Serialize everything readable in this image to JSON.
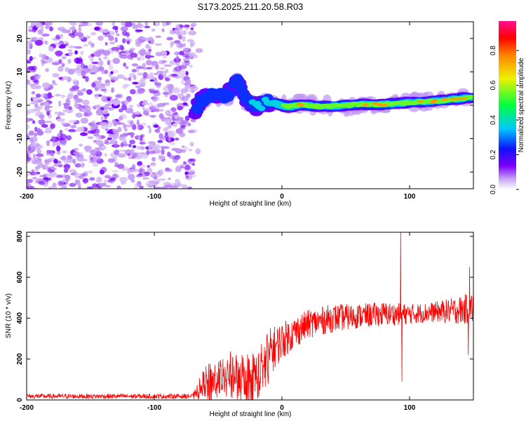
{
  "chart_data": [
    {
      "type": "heatmap",
      "title": "S173.2025.211.20.58.R03",
      "xlabel": "Height of straight line (km)",
      "ylabel": "Frequency (Hz)",
      "xlim": [
        -200,
        150
      ],
      "ylim": [
        -25,
        25
      ],
      "x_ticks": [
        -200,
        -100,
        0,
        100
      ],
      "y_ticks": [
        -20,
        -10,
        0,
        10,
        20
      ],
      "colorbar": {
        "label": "Normalized spectral amplitude",
        "range": [
          0,
          0.97
        ],
        "ticks": [
          0.0,
          0.2,
          0.4,
          0.6,
          0.8
        ],
        "stops": [
          "#ffffff",
          "#c9a8f2",
          "#7b00ff",
          "#1010ff",
          "#00c8ff",
          "#00ff40",
          "#f0f000",
          "#ff8000",
          "#ff0000",
          "#ff1090"
        ]
      },
      "noise_region_x": [
        -200,
        -70
      ],
      "ridge": [
        {
          "x": -68,
          "y": -1.5,
          "a": 0.25
        },
        {
          "x": -60,
          "y": 3,
          "a": 0.3
        },
        {
          "x": -50,
          "y": 2.5,
          "a": 0.3
        },
        {
          "x": -42,
          "y": 3.5,
          "a": 0.25
        },
        {
          "x": -35,
          "y": 7,
          "a": 0.2
        },
        {
          "x": -28,
          "y": 1.5,
          "a": 0.3
        },
        {
          "x": -20,
          "y": -0.5,
          "a": 0.35
        },
        {
          "x": -12,
          "y": 1.0,
          "a": 0.35
        },
        {
          "x": -5,
          "y": 0.5,
          "a": 0.4
        },
        {
          "x": 5,
          "y": -0.5,
          "a": 0.55
        },
        {
          "x": 15,
          "y": 0.2,
          "a": 0.7
        },
        {
          "x": 30,
          "y": -0.3,
          "a": 0.55
        },
        {
          "x": 45,
          "y": -0.2,
          "a": 0.6
        },
        {
          "x": 60,
          "y": 0.3,
          "a": 0.6
        },
        {
          "x": 75,
          "y": 0.2,
          "a": 0.75
        },
        {
          "x": 90,
          "y": 0.5,
          "a": 0.5
        },
        {
          "x": 105,
          "y": 1.0,
          "a": 0.65
        },
        {
          "x": 120,
          "y": 1.2,
          "a": 0.7
        },
        {
          "x": 135,
          "y": 1.8,
          "a": 0.75
        },
        {
          "x": 150,
          "y": 2.5,
          "a": 0.7
        }
      ]
    },
    {
      "type": "line",
      "xlabel": "Height of straight line (km)",
      "ylabel": "SNR (10 * v/v)",
      "xlim": [
        -200,
        150
      ],
      "ylim": [
        0,
        820
      ],
      "x_ticks": [
        -200,
        -100,
        0,
        100
      ],
      "y_ticks": [
        0,
        200,
        400,
        600,
        800
      ],
      "color": "#ff0000",
      "envelope": {
        "x": [
          -200,
          -70,
          -60,
          -40,
          -20,
          -10,
          0,
          20,
          40,
          60,
          80,
          100,
          120,
          140,
          150
        ],
        "mean": [
          18,
          18,
          80,
          140,
          120,
          230,
          290,
          370,
          400,
          410,
          420,
          420,
          430,
          440,
          450
        ],
        "amp": [
          12,
          12,
          90,
          100,
          120,
          120,
          90,
          70,
          70,
          60,
          60,
          50,
          50,
          70,
          80
        ]
      },
      "spikes": [
        {
          "x": 93,
          "y": 820
        },
        {
          "x": 94,
          "y": 90
        },
        {
          "x": 147,
          "y": 650
        },
        {
          "x": 146,
          "y": 220
        }
      ]
    }
  ]
}
